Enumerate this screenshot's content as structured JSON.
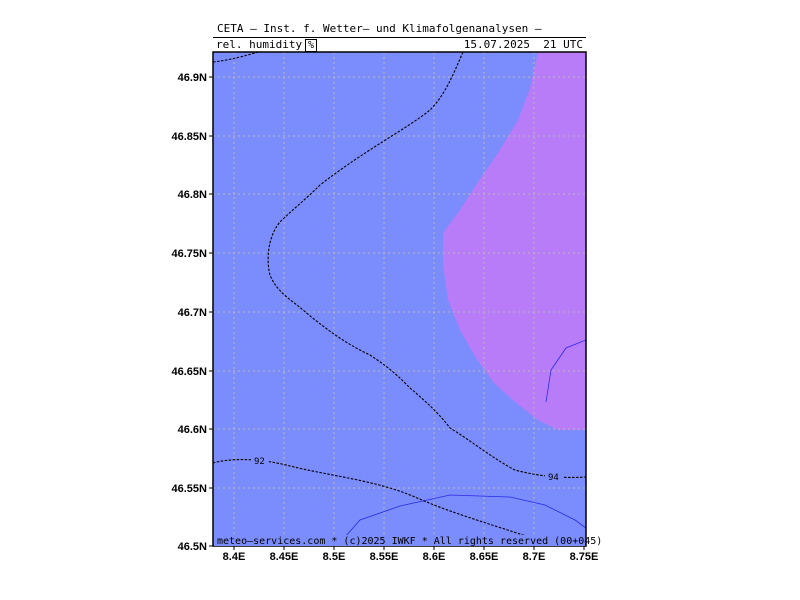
{
  "header": {
    "title": "CETA — Inst. f. Wetter— und Klimafolgenanalysen —",
    "parameter": "rel. humidity",
    "unit": "%",
    "datetime": "15.07.2025  21 UTC"
  },
  "footer": {
    "credit": "meteo—services.com * (c)2025 IWKF * All rights reserved (00+045)"
  },
  "axes": {
    "lon_labels": [
      "8.4E",
      "8.45E",
      "8.5E",
      "8.55E",
      "8.6E",
      "8.65E",
      "8.7E",
      "8.75E"
    ],
    "lat_labels": [
      "46.9N",
      "46.85N",
      "46.8N",
      "46.75N",
      "46.7N",
      "46.65N",
      "46.6N",
      "46.55N",
      "46.5N"
    ]
  },
  "contours": {
    "label_92": "92",
    "label_94": "94"
  },
  "colors": {
    "fill_main": "#7b8cfc",
    "fill_high": "#b97cf9",
    "grid": "#b8b8b8",
    "contour": "#000000",
    "thin_line": "#2a2ae6"
  }
}
